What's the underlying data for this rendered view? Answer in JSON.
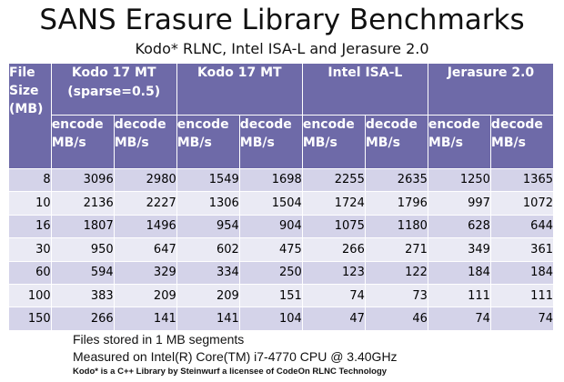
{
  "title": "SANS Erasure Library Benchmarks",
  "subtitle": "Kodo* RLNC, Intel ISA-L and Jerasure 2.0",
  "table": {
    "file_size_label": "File Size (MB)",
    "groups": [
      {
        "label": "Kodo 17 MT",
        "sublabel": "(sparse=0.5)"
      },
      {
        "label": "Kodo 17 MT",
        "sublabel": ""
      },
      {
        "label": "Intel ISA-L",
        "sublabel": ""
      },
      {
        "label": "Jerasure 2.0",
        "sublabel": ""
      }
    ],
    "encode_label": "encode MB/s",
    "decode_label": "decode MB/s",
    "rows": [
      {
        "size": "8",
        "values": [
          "3096",
          "2980",
          "1549",
          "1698",
          "2255",
          "2635",
          "1250",
          "1365"
        ]
      },
      {
        "size": "10",
        "values": [
          "2136",
          "2227",
          "1306",
          "1504",
          "1724",
          "1796",
          "997",
          "1072"
        ]
      },
      {
        "size": "16",
        "values": [
          "1807",
          "1496",
          "954",
          "904",
          "1075",
          "1180",
          "628",
          "644"
        ]
      },
      {
        "size": "30",
        "values": [
          "950",
          "647",
          "602",
          "475",
          "266",
          "271",
          "349",
          "361"
        ]
      },
      {
        "size": "60",
        "values": [
          "594",
          "329",
          "334",
          "250",
          "123",
          "122",
          "184",
          "184"
        ]
      },
      {
        "size": "100",
        "values": [
          "383",
          "209",
          "209",
          "151",
          "74",
          "73",
          "111",
          "111"
        ]
      },
      {
        "size": "150",
        "values": [
          "266",
          "141",
          "141",
          "104",
          "47",
          "46",
          "74",
          "74"
        ]
      }
    ]
  },
  "footer": {
    "line1": "Files stored in 1 MB segments",
    "line2": "Measured on Intel(R) Core(TM) i7-4770 CPU @ 3.40GHz",
    "line3": "Kodo* is a C++ Library by Steinwurf a licensee of CodeOn RLNC Technology"
  },
  "colors": {
    "header": "#6e6aa8",
    "row_odd": "#d4d3e9",
    "row_even": "#eaeaf4"
  }
}
